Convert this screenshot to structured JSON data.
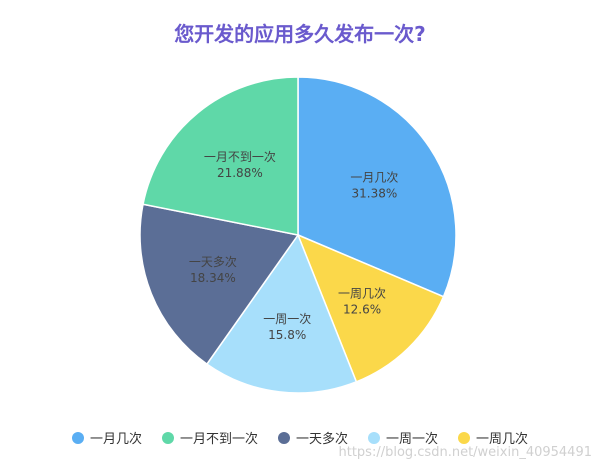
{
  "chart_data": {
    "type": "pie",
    "title": "您开发的应用多久发布一次?",
    "categories": [
      "一月几次",
      "一月不到一次",
      "一天多次",
      "一周一次",
      "一周几次"
    ],
    "legend_order": [
      "一月几次",
      "一月不到一次",
      "一天多次",
      "一周一次",
      "一周几次"
    ],
    "slice_order": [
      "一月几次",
      "一周几次",
      "一周一次",
      "一天多次",
      "一月不到一次"
    ],
    "values": {
      "一月几次": 31.38,
      "一周几次": 12.6,
      "一周一次": 15.8,
      "一天多次": 18.34,
      "一月不到一次": 21.88
    },
    "labels": {
      "一月几次": "31.38%",
      "一周几次": "12.6%",
      "一周一次": "15.8%",
      "一天多次": "18.34%",
      "一月不到一次": "21.88%"
    },
    "colors": {
      "一月几次": "#5aaef3",
      "一月不到一次": "#5fd8a8",
      "一天多次": "#5b6e96",
      "一周一次": "#a7dffb",
      "一周几次": "#fbd84a"
    },
    "legend_placement": "bottom"
  },
  "watermark": "https://blog.csdn.net/weixin_40954491"
}
